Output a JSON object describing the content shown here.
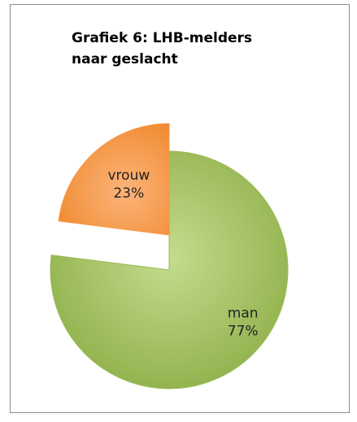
{
  "chart_data": {
    "type": "pie",
    "title": "Grafiek 6: LHB-melders naar geslacht",
    "categories": [
      "man",
      "vrouw"
    ],
    "values": [
      77,
      23
    ],
    "value_labels": [
      "77%",
      "23%"
    ],
    "colors": [
      "#9bbb59",
      "#f79646"
    ]
  }
}
